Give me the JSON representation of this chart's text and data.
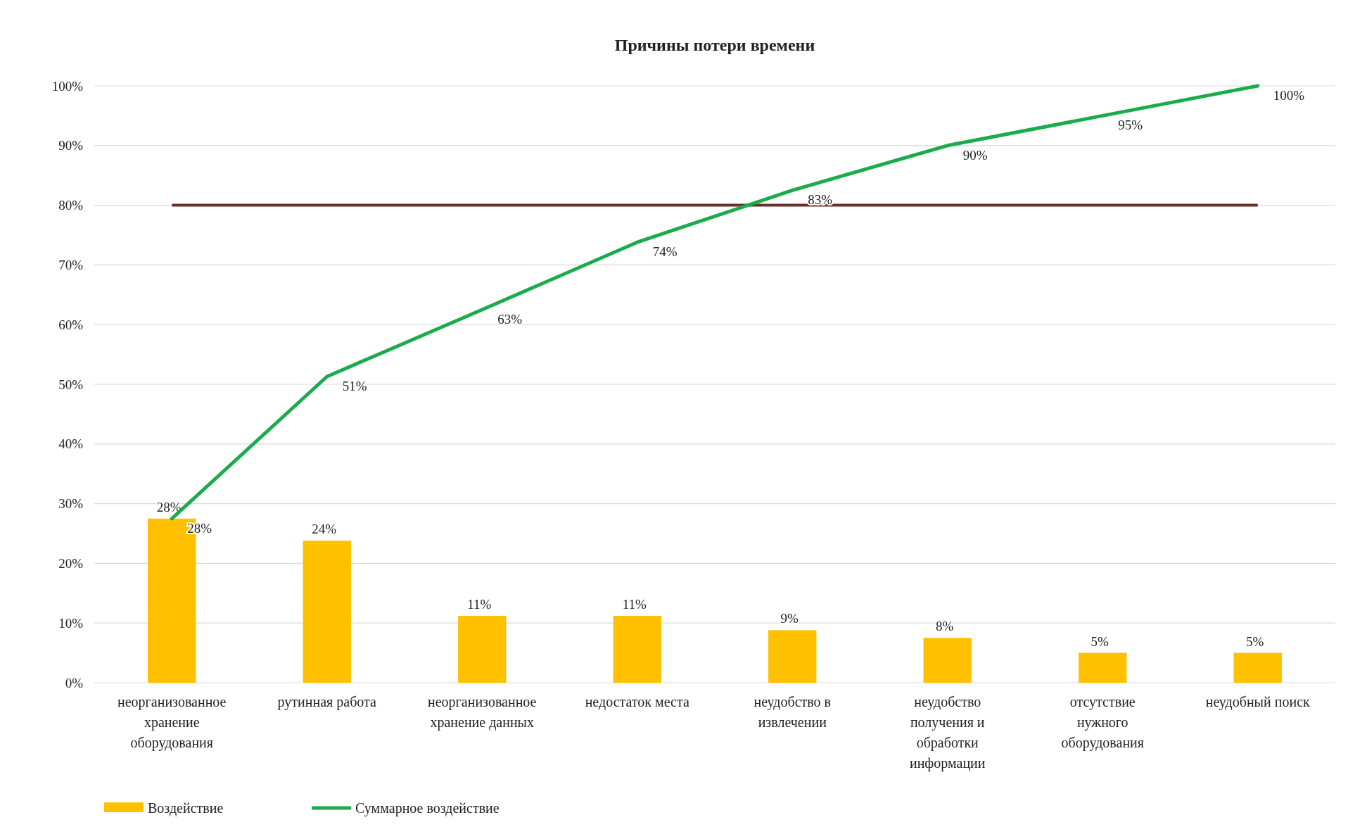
{
  "chart_data": {
    "type": "bar",
    "title": "Причины потери времени",
    "categories": [
      "неорганизованное хранение оборудования",
      "рутинная работа",
      "неорганизованное хранение данных",
      "недостаток места",
      "неудобство в извлечении",
      "неудобство получения и обработки информации",
      "отсутствие нужного оборудования",
      "неудобный поиск"
    ],
    "series": [
      {
        "name": "Воздействие",
        "color": "#ffc000",
        "values": [
          27.5,
          23.8,
          11.2,
          11.2,
          8.8,
          7.5,
          5,
          5
        ],
        "value_labels": [
          "28%",
          "24%",
          "11%",
          "11%",
          "9%",
          "8%",
          "5%",
          "5%"
        ]
      },
      {
        "name": "Суммарное воздействие",
        "type": "line",
        "color": "#1aab4b",
        "values": [
          27.5,
          51.3,
          62.5,
          73.8,
          82.5,
          90,
          95,
          100
        ],
        "value_labels": [
          "28%",
          "51%",
          "63%",
          "74%",
          "83%",
          "90%",
          "95%",
          "100%"
        ]
      }
    ],
    "ylim": [
      0,
      100
    ],
    "yticks": [
      {
        "value": 0,
        "label": "0%"
      },
      {
        "value": 10,
        "label": "10%"
      },
      {
        "value": 20,
        "label": "20%"
      },
      {
        "value": 30,
        "label": "30%"
      },
      {
        "value": 40,
        "label": "40%"
      },
      {
        "value": 50,
        "label": "50%"
      },
      {
        "value": 60,
        "label": "60%"
      },
      {
        "value": 70,
        "label": "70%"
      },
      {
        "value": 80,
        "label": "80%"
      },
      {
        "value": 90,
        "label": "90%"
      },
      {
        "value": 100,
        "label": "100%"
      }
    ],
    "ref_lines": [
      {
        "axis": "y",
        "value": 80,
        "color": "#6b2f2a"
      }
    ],
    "grid": "y",
    "legend": "bottom left"
  }
}
